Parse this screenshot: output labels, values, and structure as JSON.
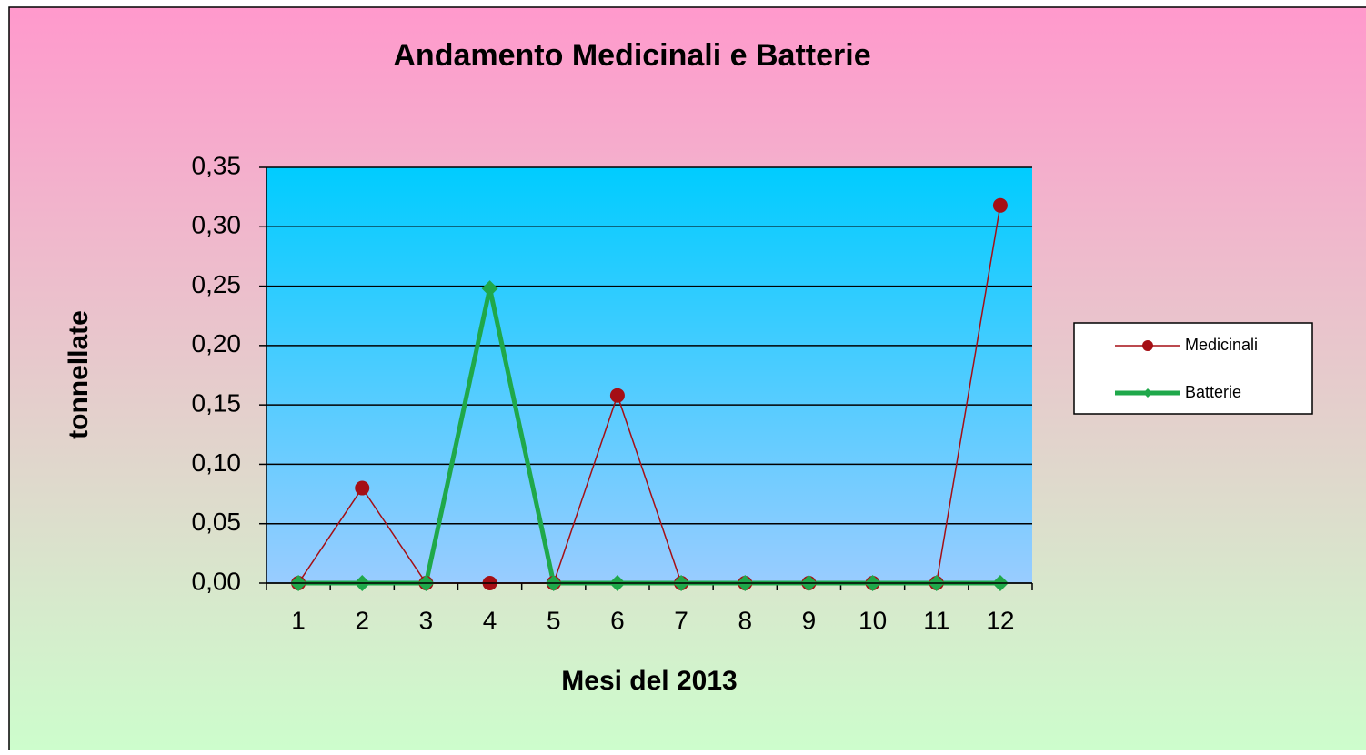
{
  "chart_data": {
    "type": "line",
    "title": "Andamento Medicinali e Batterie",
    "xlabel": "Mesi del 2013",
    "ylabel": "tonnellate",
    "categories": [
      "1",
      "2",
      "3",
      "4",
      "5",
      "6",
      "7",
      "8",
      "9",
      "10",
      "11",
      "12"
    ],
    "series": [
      {
        "name": "Medicinali",
        "color": "#a50f15",
        "values": [
          0,
          0.08,
          0,
          0,
          0,
          0.158,
          0,
          0,
          0,
          0,
          0,
          0.318
        ]
      },
      {
        "name": "Batterie",
        "color": "#1fa84a",
        "values": [
          0,
          0,
          0,
          0.248,
          0,
          0,
          0,
          0,
          0,
          0,
          0,
          0
        ]
      }
    ],
    "ylim": [
      0,
      0.35
    ],
    "yticks": [
      {
        "value": 0,
        "label": "0,00"
      },
      {
        "value": 0.05,
        "label": "0,05"
      },
      {
        "value": 0.1,
        "label": "0,10"
      },
      {
        "value": 0.15,
        "label": "0,15"
      },
      {
        "value": 0.2,
        "label": "0,20"
      },
      {
        "value": 0.25,
        "label": "0,25"
      },
      {
        "value": 0.3,
        "label": "0,30"
      },
      {
        "value": 0.35,
        "label": "0,35"
      }
    ],
    "grid": true,
    "legend": "right"
  }
}
